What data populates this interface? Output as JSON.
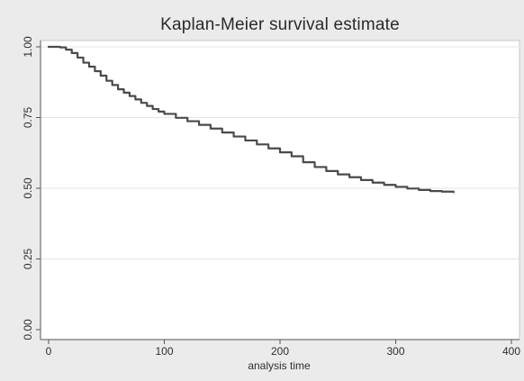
{
  "chart_data": {
    "type": "line",
    "title": "Kaplan-Meier survival estimate",
    "xlabel": "analysis time",
    "ylabel": "",
    "xlim": [
      0,
      400
    ],
    "ylim": [
      0,
      1
    ],
    "x_ticks": [
      0,
      100,
      200,
      300,
      400
    ],
    "x_tick_labels": [
      "0",
      "100",
      "200",
      "300",
      "400"
    ],
    "y_ticks": [
      0,
      0.25,
      0.5,
      0.75,
      1
    ],
    "y_tick_labels": [
      "0.00",
      "0.25",
      "0.50",
      "0.75",
      "1.00"
    ],
    "grid": true,
    "line_color": "#4a4a4a",
    "series": [
      {
        "step": true,
        "x": [
          0,
          5,
          10,
          15,
          20,
          25,
          30,
          35,
          40,
          45,
          50,
          55,
          60,
          65,
          70,
          75,
          80,
          85,
          90,
          95,
          100,
          110,
          120,
          130,
          140,
          150,
          160,
          170,
          180,
          190,
          200,
          210,
          220,
          230,
          240,
          250,
          260,
          270,
          280,
          290,
          300,
          310,
          320,
          330,
          340,
          350
        ],
        "y": [
          1.0,
          1.0,
          0.998,
          0.99,
          0.978,
          0.962,
          0.944,
          0.93,
          0.914,
          0.898,
          0.88,
          0.865,
          0.85,
          0.838,
          0.826,
          0.814,
          0.802,
          0.791,
          0.78,
          0.771,
          0.763,
          0.749,
          0.737,
          0.724,
          0.711,
          0.697,
          0.683,
          0.669,
          0.655,
          0.641,
          0.627,
          0.613,
          0.592,
          0.575,
          0.561,
          0.549,
          0.539,
          0.529,
          0.52,
          0.512,
          0.505,
          0.499,
          0.494,
          0.49,
          0.488,
          0.486
        ]
      }
    ]
  }
}
